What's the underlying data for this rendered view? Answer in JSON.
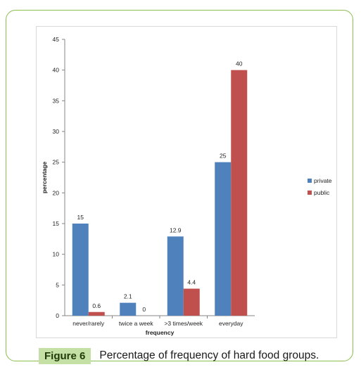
{
  "caption": {
    "label": "Figure 6",
    "text": "Percentage of frequency of hard food groups."
  },
  "chart_data": {
    "type": "bar",
    "categories": [
      "never/rarely",
      "twice a week",
      ">3 times/week",
      "everyday"
    ],
    "series": [
      {
        "name": "private",
        "values": [
          15,
          2.1,
          12.9,
          25
        ],
        "labels": [
          "15",
          "2.1",
          "12.9",
          "25"
        ],
        "color": "#4f81bd"
      },
      {
        "name": "public",
        "values": [
          0.6,
          0,
          4.4,
          40
        ],
        "labels": [
          "0.6",
          "0",
          "4.4",
          "40"
        ],
        "color": "#c0504d"
      }
    ],
    "xlabel": "frequency",
    "ylabel": "percentage",
    "ylim": [
      0,
      45
    ],
    "yticks": [
      0,
      5,
      10,
      15,
      20,
      25,
      30,
      35,
      40,
      45
    ],
    "grid": false,
    "legend": "right"
  }
}
